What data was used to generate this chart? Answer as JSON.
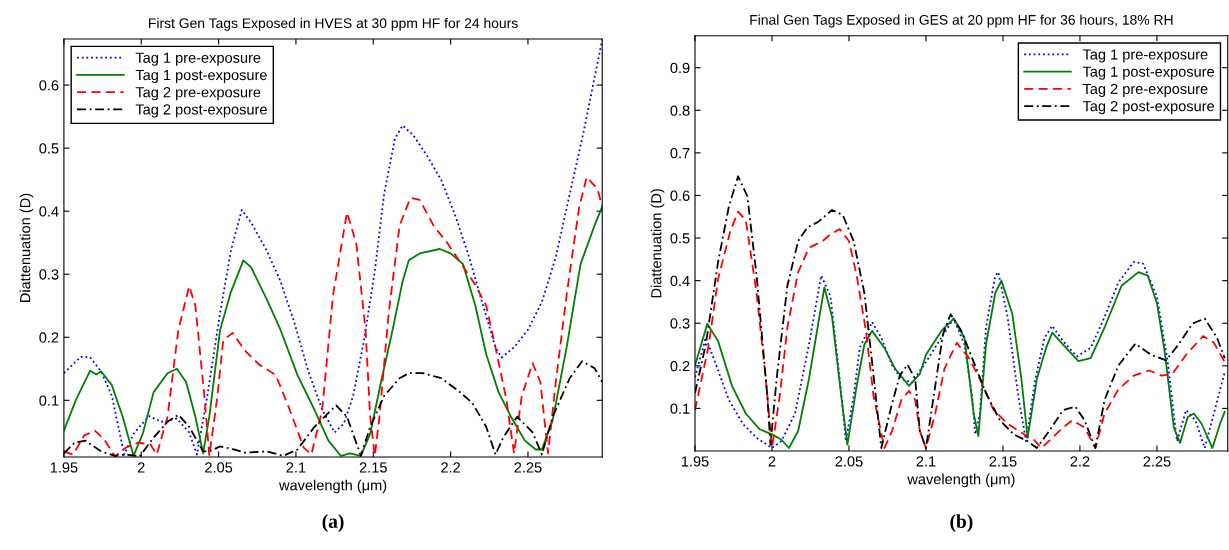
{
  "chart_data": [
    {
      "type": "line",
      "title": "First Gen Tags Exposed in HVES at 30 ppm HF for 24 hours",
      "xlabel": "wavelength (μm)",
      "ylabel": "Diattenuation (D)",
      "annotations": [
        "(a)"
      ],
      "xlim": [
        1.95,
        2.298
      ],
      "ylim": [
        0.01,
        0.673
      ],
      "xticks": [
        1.95,
        2,
        2.05,
        2.1,
        2.15,
        2.2,
        2.25
      ],
      "yticks": [
        0.1,
        0.2,
        0.3,
        0.4,
        0.5,
        0.6
      ],
      "grid": false,
      "legend": "top left",
      "marker": "none",
      "series": [
        {
          "name": "Tag 1 pre-exposure",
          "color": "#0000ff",
          "line_style": "dotted",
          "x": [
            1.95,
            1.961,
            1.967,
            1.974,
            1.981,
            1.989,
            1.995,
            2.005,
            2.013,
            2.023,
            2.031,
            2.036,
            2.042,
            2.051,
            2.058,
            2.065,
            2.071,
            2.081,
            2.09,
            2.099,
            2.108,
            2.117,
            2.125,
            2.131,
            2.137,
            2.144,
            2.151,
            2.157,
            2.164,
            2.169,
            2.176,
            2.185,
            2.194,
            2.203,
            2.212,
            2.221,
            2.229,
            2.233,
            2.241,
            2.25,
            2.259,
            2.268,
            2.277,
            2.286,
            2.298
          ],
          "values": [
            0.143,
            0.169,
            0.168,
            0.146,
            0.107,
            0.014,
            0.047,
            0.075,
            0.066,
            0.071,
            0.049,
            0.014,
            0.096,
            0.239,
            0.338,
            0.402,
            0.382,
            0.338,
            0.289,
            0.223,
            0.146,
            0.085,
            0.049,
            0.063,
            0.107,
            0.195,
            0.305,
            0.427,
            0.515,
            0.536,
            0.52,
            0.487,
            0.449,
            0.393,
            0.327,
            0.25,
            0.184,
            0.168,
            0.184,
            0.212,
            0.256,
            0.327,
            0.427,
            0.526,
            0.672
          ]
        },
        {
          "name": "Tag 1 post-exposure",
          "color": "#008000",
          "line_style": "solid",
          "x": [
            1.95,
            1.958,
            1.967,
            1.971,
            1.974,
            1.981,
            1.988,
            1.995,
            2.001,
            2.008,
            2.017,
            2.023,
            2.029,
            2.035,
            2.04,
            2.044,
            2.051,
            2.058,
            2.066,
            2.071,
            2.081,
            2.09,
            2.101,
            2.112,
            2.121,
            2.129,
            2.135,
            2.142,
            2.148,
            2.155,
            2.162,
            2.169,
            2.173,
            2.18,
            2.193,
            2.2,
            2.208,
            2.216,
            2.223,
            2.231,
            2.239,
            2.248,
            2.255,
            2.259,
            2.266,
            2.275,
            2.284,
            2.293,
            2.298
          ],
          "values": [
            0.052,
            0.102,
            0.147,
            0.141,
            0.146,
            0.124,
            0.074,
            0.012,
            0.047,
            0.113,
            0.143,
            0.15,
            0.129,
            0.074,
            0.016,
            0.074,
            0.212,
            0.272,
            0.322,
            0.311,
            0.261,
            0.212,
            0.14,
            0.085,
            0.036,
            0.012,
            0.016,
            0.012,
            0.047,
            0.129,
            0.206,
            0.289,
            0.322,
            0.333,
            0.34,
            0.333,
            0.316,
            0.25,
            0.173,
            0.113,
            0.074,
            0.036,
            0.022,
            0.022,
            0.069,
            0.184,
            0.316,
            0.377,
            0.407
          ]
        },
        {
          "name": "Tag 2 pre-exposure",
          "color": "#ff0000",
          "line_style": "dashed",
          "x": [
            1.95,
            1.956,
            1.963,
            1.97,
            1.976,
            1.983,
            1.99,
            1.998,
            2.006,
            2.01,
            2.017,
            2.024,
            2.031,
            2.035,
            2.041,
            2.044,
            2.049,
            2.053,
            2.059,
            2.067,
            2.076,
            2.087,
            2.096,
            2.105,
            2.11,
            2.117,
            2.124,
            2.133,
            2.139,
            2.145,
            2.148,
            2.151,
            2.154,
            2.16,
            2.167,
            2.174,
            2.18,
            2.189,
            2.198,
            2.207,
            2.216,
            2.223,
            2.229,
            2.236,
            2.241,
            2.246,
            2.253,
            2.258,
            2.263,
            2.268,
            2.275,
            2.283,
            2.288,
            2.295,
            2.298
          ],
          "values": [
            0.019,
            0.014,
            0.044,
            0.052,
            0.038,
            0.011,
            0.025,
            0.033,
            0.03,
            0.014,
            0.074,
            0.212,
            0.281,
            0.25,
            0.102,
            0.012,
            0.102,
            0.195,
            0.207,
            0.179,
            0.157,
            0.14,
            0.085,
            0.025,
            0.014,
            0.085,
            0.267,
            0.398,
            0.349,
            0.212,
            0.074,
            0.012,
            0.074,
            0.239,
            0.377,
            0.421,
            0.418,
            0.377,
            0.349,
            0.316,
            0.283,
            0.25,
            0.184,
            0.102,
            0.016,
            0.107,
            0.159,
            0.129,
            0.016,
            0.129,
            0.267,
            0.405,
            0.454,
            0.435,
            0.407
          ]
        },
        {
          "name": "Tag 2 post-exposure",
          "color": "#000000",
          "line_style": "dashdot",
          "x": [
            1.95,
            1.957,
            1.964,
            1.974,
            1.983,
            1.99,
            1.999,
            2.008,
            2.017,
            2.024,
            2.031,
            2.04,
            2.044,
            2.051,
            2.06,
            2.067,
            2.081,
            2.092,
            2.101,
            2.112,
            2.126,
            2.133,
            2.142,
            2.148,
            2.157,
            2.167,
            2.173,
            2.182,
            2.194,
            2.205,
            2.214,
            2.223,
            2.229,
            2.234,
            2.243,
            2.253,
            2.259,
            2.266,
            2.277,
            2.285,
            2.293,
            2.298
          ],
          "values": [
            0.016,
            0.033,
            0.036,
            0.019,
            0.012,
            0.014,
            0.011,
            0.041,
            0.066,
            0.077,
            0.058,
            0.019,
            0.019,
            0.027,
            0.022,
            0.017,
            0.019,
            0.012,
            0.022,
            0.058,
            0.092,
            0.074,
            0.012,
            0.058,
            0.107,
            0.135,
            0.143,
            0.143,
            0.135,
            0.115,
            0.096,
            0.058,
            0.014,
            0.041,
            0.074,
            0.049,
            0.014,
            0.074,
            0.135,
            0.162,
            0.151,
            0.129
          ]
        }
      ]
    },
    {
      "type": "line",
      "title": "Final Gen Tags Exposed in GES at 20 ppm HF for 36 hours, 18% RH",
      "xlabel": "wavelength (μm)",
      "ylabel": "Diattenuation (D)",
      "annotations": [
        "(b)"
      ],
      "xlim": [
        1.95,
        2.296
      ],
      "ylim": [
        0.0,
        0.975
      ],
      "xticks": [
        1.95,
        2,
        2.05,
        2.1,
        2.15,
        2.2,
        2.25
      ],
      "yticks": [
        0.1,
        0.2,
        0.3,
        0.4,
        0.5,
        0.6,
        0.7,
        0.8,
        0.9
      ],
      "grid": false,
      "legend": "top right",
      "marker": "none",
      "series": [
        {
          "name": "Tag 1 pre-exposure",
          "color": "#0000ff",
          "line_style": "dotted",
          "x": [
            1.95,
            1.957,
            1.963,
            1.972,
            1.981,
            1.99,
            2.0,
            2.006,
            2.015,
            2.024,
            2.032,
            2.038,
            2.044,
            2.048,
            2.053,
            2.057,
            2.065,
            2.071,
            2.078,
            2.084,
            2.091,
            2.1,
            2.11,
            2.118,
            2.125,
            2.13,
            2.132,
            2.135,
            2.139,
            2.145,
            2.147,
            2.153,
            2.16,
            2.165,
            2.171,
            2.177,
            2.182,
            2.189,
            2.198,
            2.207,
            2.216,
            2.225,
            2.235,
            2.241,
            2.25,
            2.257,
            2.263,
            2.269,
            2.275,
            2.281,
            2.287,
            2.294
          ],
          "values": [
            0.173,
            0.266,
            0.209,
            0.12,
            0.064,
            0.031,
            0.007,
            0.023,
            0.088,
            0.25,
            0.412,
            0.363,
            0.169,
            0.023,
            0.128,
            0.242,
            0.303,
            0.266,
            0.201,
            0.169,
            0.161,
            0.209,
            0.266,
            0.311,
            0.25,
            0.128,
            0.039,
            0.088,
            0.29,
            0.412,
            0.42,
            0.315,
            0.128,
            0.023,
            0.169,
            0.266,
            0.294,
            0.258,
            0.222,
            0.242,
            0.315,
            0.396,
            0.444,
            0.44,
            0.363,
            0.209,
            0.023,
            0.096,
            0.072,
            0.007,
            0.088,
            0.185
          ]
        },
        {
          "name": "Tag 1 post-exposure",
          "color": "#008000",
          "line_style": "solid",
          "x": [
            1.95,
            1.958,
            1.965,
            1.974,
            1.983,
            1.992,
            2.0,
            2.006,
            2.011,
            2.017,
            2.024,
            2.034,
            2.039,
            2.045,
            2.049,
            2.055,
            2.06,
            2.065,
            2.073,
            2.08,
            2.089,
            2.096,
            2.1,
            2.11,
            2.118,
            2.125,
            2.131,
            2.134,
            2.139,
            2.145,
            2.149,
            2.156,
            2.162,
            2.166,
            2.172,
            2.178,
            2.182,
            2.189,
            2.199,
            2.207,
            2.216,
            2.227,
            2.238,
            2.244,
            2.25,
            2.255,
            2.261,
            2.265,
            2.27,
            2.274,
            2.279,
            2.286,
            2.291,
            2.294
          ],
          "values": [
            0.201,
            0.299,
            0.258,
            0.153,
            0.088,
            0.051,
            0.039,
            0.027,
            0.007,
            0.047,
            0.169,
            0.384,
            0.315,
            0.128,
            0.015,
            0.153,
            0.25,
            0.282,
            0.242,
            0.193,
            0.153,
            0.181,
            0.226,
            0.282,
            0.311,
            0.266,
            0.088,
            0.035,
            0.25,
            0.371,
            0.4,
            0.323,
            0.169,
            0.031,
            0.169,
            0.242,
            0.278,
            0.25,
            0.211,
            0.218,
            0.29,
            0.388,
            0.42,
            0.412,
            0.347,
            0.234,
            0.055,
            0.019,
            0.08,
            0.088,
            0.064,
            0.007,
            0.064,
            0.092
          ]
        },
        {
          "name": "Tag 2 pre-exposure",
          "color": "#ff0000",
          "line_style": "dashed",
          "x": [
            1.95,
            1.959,
            1.965,
            1.973,
            1.978,
            1.983,
            1.99,
            1.996,
            2.0,
            2.005,
            2.01,
            2.017,
            2.024,
            2.033,
            2.038,
            2.044,
            2.05,
            2.055,
            2.061,
            2.066,
            2.073,
            2.078,
            2.084,
            2.089,
            2.093,
            2.096,
            2.1,
            2.106,
            2.112,
            2.12,
            2.128,
            2.135,
            2.144,
            2.153,
            2.162,
            2.17,
            2.175,
            2.182,
            2.189,
            2.195,
            2.203,
            2.21,
            2.216,
            2.225,
            2.235,
            2.245,
            2.253,
            2.26,
            2.269,
            2.28,
            2.287,
            2.294
          ],
          "values": [
            0.096,
            0.25,
            0.404,
            0.517,
            0.562,
            0.542,
            0.371,
            0.169,
            0.007,
            0.128,
            0.29,
            0.42,
            0.477,
            0.493,
            0.509,
            0.521,
            0.493,
            0.412,
            0.282,
            0.128,
            0.007,
            0.047,
            0.12,
            0.141,
            0.12,
            0.047,
            0.007,
            0.088,
            0.193,
            0.254,
            0.218,
            0.169,
            0.096,
            0.064,
            0.043,
            0.027,
            0.007,
            0.031,
            0.055,
            0.072,
            0.055,
            0.007,
            0.088,
            0.145,
            0.177,
            0.189,
            0.177,
            0.181,
            0.226,
            0.27,
            0.254,
            0.209
          ]
        },
        {
          "name": "Tag 2 post-exposure",
          "color": "#000000",
          "line_style": "dashdot",
          "x": [
            1.95,
            1.957,
            1.965,
            1.972,
            1.978,
            1.984,
            1.99,
            1.997,
            1.999,
            2.003,
            2.01,
            2.017,
            2.023,
            2.03,
            2.039,
            2.046,
            2.053,
            2.06,
            2.065,
            2.071,
            2.078,
            2.083,
            2.088,
            2.093,
            2.096,
            2.1,
            2.105,
            2.111,
            2.116,
            2.123,
            2.13,
            2.139,
            2.148,
            2.157,
            2.166,
            2.172,
            2.18,
            2.189,
            2.197,
            2.203,
            2.21,
            2.216,
            2.225,
            2.236,
            2.246,
            2.256,
            2.264,
            2.273,
            2.281,
            2.289,
            2.294
          ],
          "values": [
            0.136,
            0.25,
            0.444,
            0.574,
            0.645,
            0.598,
            0.412,
            0.128,
            0.015,
            0.169,
            0.388,
            0.493,
            0.525,
            0.538,
            0.566,
            0.554,
            0.493,
            0.371,
            0.209,
            0.007,
            0.112,
            0.177,
            0.203,
            0.169,
            0.047,
            0.007,
            0.128,
            0.274,
            0.321,
            0.282,
            0.218,
            0.136,
            0.072,
            0.039,
            0.023,
            0.007,
            0.047,
            0.096,
            0.104,
            0.072,
            0.007,
            0.12,
            0.201,
            0.252,
            0.226,
            0.213,
            0.25,
            0.299,
            0.311,
            0.266,
            0.218
          ]
        }
      ]
    }
  ]
}
